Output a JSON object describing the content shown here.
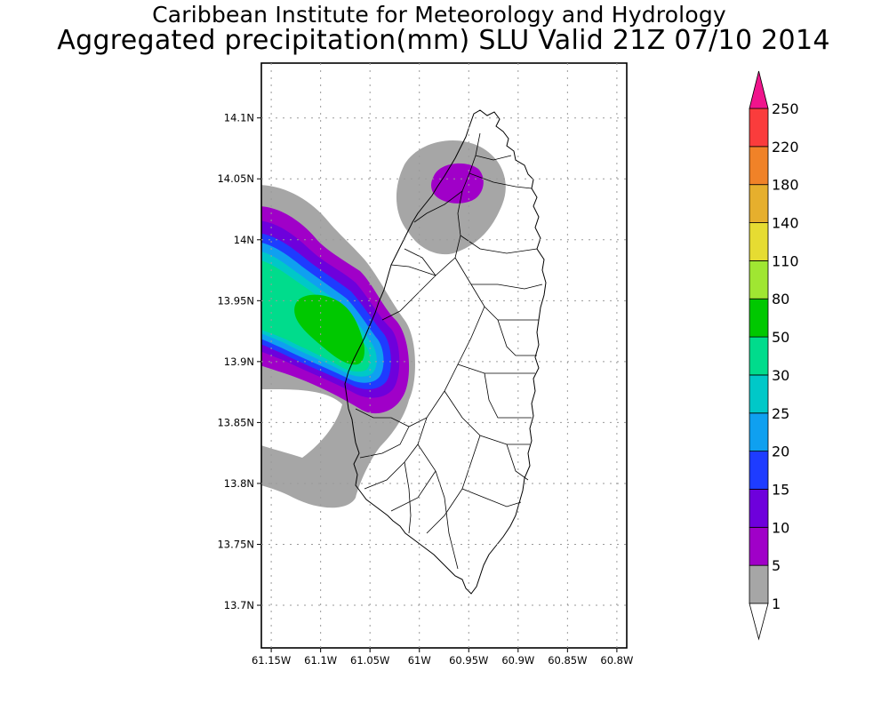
{
  "header": {
    "title": "Caribbean Institute for Meteorology and Hydrology",
    "subtitle": "Aggregated precipitation(mm) SLU Valid 21Z 07/10 2014"
  },
  "map": {
    "lon_range": [
      -61.16,
      -60.79
    ],
    "lat_range": [
      13.665,
      14.145
    ],
    "lon_ticks": [
      {
        "value": -61.15,
        "label": "61.15W"
      },
      {
        "value": -61.1,
        "label": "61.1W"
      },
      {
        "value": -61.05,
        "label": "61.05W"
      },
      {
        "value": -61.0,
        "label": "61W"
      },
      {
        "value": -60.95,
        "label": "60.95W"
      },
      {
        "value": -60.9,
        "label": "60.9W"
      },
      {
        "value": -60.85,
        "label": "60.85W"
      },
      {
        "value": -60.8,
        "label": "60.8W"
      }
    ],
    "lat_ticks": [
      {
        "value": 14.1,
        "label": "14.1N"
      },
      {
        "value": 14.05,
        "label": "14.05N"
      },
      {
        "value": 14.0,
        "label": "14N"
      },
      {
        "value": 13.95,
        "label": "13.95N"
      },
      {
        "value": 13.9,
        "label": "13.9N"
      },
      {
        "value": 13.85,
        "label": "13.85N"
      },
      {
        "value": 13.8,
        "label": "13.8N"
      },
      {
        "value": 13.75,
        "label": "13.75N"
      },
      {
        "value": 13.7,
        "label": "13.7N"
      }
    ],
    "grid": "dotted"
  },
  "colorbar": {
    "levels": [
      "1",
      "5",
      "10",
      "15",
      "20",
      "25",
      "30",
      "50",
      "80",
      "110",
      "140",
      "180",
      "220",
      "250"
    ],
    "colors": [
      "#a6a6a6",
      "#a000c8",
      "#6e00dc",
      "#1e3cff",
      "#0fa0f0",
      "#00c8c8",
      "#00dc8c",
      "#00c800",
      "#a0e632",
      "#e6dc32",
      "#e6af2d",
      "#f08228",
      "#fa3c3c",
      "#f0148c"
    ],
    "under_color": "#ffffff"
  }
}
